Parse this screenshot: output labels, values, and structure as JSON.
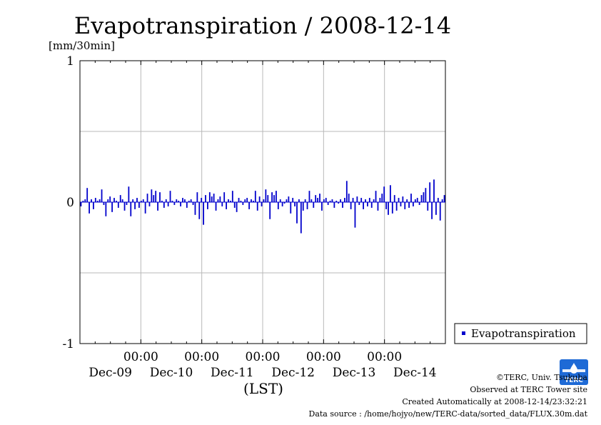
{
  "chart_data": {
    "type": "bar",
    "title": "Evapotranspiration / 2008-12-14",
    "ylabel": "[mm/30min]",
    "xlabel": "(LST)",
    "ylim": [
      -1,
      1
    ],
    "yticks": [
      {
        "value": 1,
        "label": "1"
      },
      {
        "value": 0,
        "label": "0"
      },
      {
        "value": -1,
        "label": "-1"
      }
    ],
    "y_gridlines": [
      -0.5,
      0.5
    ],
    "xlim": [
      0,
      6
    ],
    "xticks": [
      {
        "x": 1,
        "time": "00:00",
        "date": "Dec-10"
      },
      {
        "x": 2,
        "time": "00:00",
        "date": "Dec-11"
      },
      {
        "x": 3,
        "time": "00:00",
        "date": "Dec-12"
      },
      {
        "x": 4,
        "time": "00:00",
        "date": "Dec-13"
      },
      {
        "x": 5,
        "time": "00:00",
        "date": "Dec-14"
      }
    ],
    "day_labels": [
      "Dec-09",
      "Dec-10",
      "Dec-11",
      "Dec-12",
      "Dec-13",
      "Dec-14"
    ],
    "grid": true,
    "legend_position": "outside-right-bottom",
    "series": [
      {
        "name": "Evapotranspiration",
        "color": "#0000cc",
        "values": [
          -0.03,
          0.01,
          0.02,
          0.1,
          -0.08,
          0.02,
          -0.05,
          0.03,
          0.01,
          0.02,
          0.09,
          -0.02,
          -0.1,
          0.02,
          0.04,
          -0.07,
          0.03,
          0.01,
          -0.04,
          0.05,
          0.02,
          -0.06,
          -0.02,
          0.11,
          -0.1,
          0.02,
          -0.05,
          0.03,
          -0.04,
          0.01,
          0.02,
          -0.08,
          0.06,
          -0.03,
          0.09,
          0.05,
          0.08,
          -0.06,
          0.07,
          0.01,
          -0.04,
          0.02,
          -0.03,
          0.08,
          0.01,
          -0.02,
          0.02,
          0.01,
          -0.03,
          0.03,
          0.02,
          -0.04,
          0.01,
          0.02,
          -0.02,
          -0.09,
          0.07,
          -0.12,
          0.03,
          -0.16,
          0.05,
          -0.05,
          0.07,
          0.04,
          0.06,
          -0.06,
          0.02,
          0.04,
          -0.03,
          0.07,
          -0.05,
          0.02,
          0.01,
          0.08,
          -0.04,
          -0.07,
          0.03,
          0.01,
          -0.02,
          0.02,
          0.03,
          -0.05,
          0.02,
          0.01,
          0.08,
          -0.06,
          0.04,
          -0.03,
          0.02,
          0.09,
          0.05,
          -0.12,
          0.07,
          0.05,
          0.08,
          -0.05,
          0.02,
          -0.03,
          -0.01,
          0.02,
          0.04,
          -0.08,
          0.03,
          -0.03,
          -0.15,
          0.02,
          -0.22,
          -0.06,
          0.02,
          -0.05,
          0.08,
          0.02,
          -0.04,
          0.05,
          0.03,
          0.06,
          -0.06,
          0.02,
          0.03,
          -0.02,
          0.01,
          0.02,
          -0.04,
          0.01,
          -0.01,
          0.02,
          -0.04,
          0.03,
          0.15,
          0.06,
          -0.05,
          0.03,
          -0.18,
          0.04,
          -0.02,
          0.03,
          -0.05,
          0.02,
          -0.03,
          0.03,
          -0.04,
          0.02,
          0.08,
          -0.06,
          0.03,
          0.06,
          0.11,
          -0.05,
          -0.09,
          0.12,
          -0.08,
          0.05,
          -0.06,
          0.03,
          -0.03,
          0.04,
          -0.05,
          0.02,
          -0.04,
          0.06,
          -0.03,
          0.02,
          0.03,
          -0.02,
          0.05,
          0.07,
          0.1,
          -0.06,
          0.14,
          -0.12,
          0.16,
          -0.09,
          0.03,
          -0.13,
          0.02,
          0.05
        ]
      }
    ]
  },
  "legend": {
    "label": "Evapotranspiration"
  },
  "credits": {
    "copyright": "©TERC, Univ. Tsukuba",
    "observed": "Observed at TERC Tower site",
    "created": "Created Automatically at 2008-12-14/23:32:21",
    "source": "Data source : /home/hojyo/new/TERC-data/sorted_data/FLUX.30m.dat"
  },
  "logo": {
    "text": "TERC",
    "color": "#1e6ad6"
  }
}
